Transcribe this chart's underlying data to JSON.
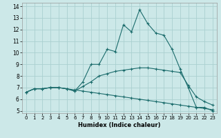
{
  "xlabel": "Humidex (Indice chaleur)",
  "background_color": "#cce8e8",
  "line_color": "#1a6b6b",
  "grid_color": "#aad0d0",
  "xlim": [
    -0.5,
    23.5
  ],
  "ylim": [
    4.8,
    14.3
  ],
  "xticks": [
    0,
    1,
    2,
    3,
    4,
    5,
    6,
    7,
    8,
    9,
    10,
    11,
    12,
    13,
    14,
    15,
    16,
    17,
    18,
    19,
    20,
    21,
    22,
    23
  ],
  "yticks": [
    5,
    6,
    7,
    8,
    9,
    10,
    11,
    12,
    13,
    14
  ],
  "lines": [
    {
      "x": [
        0,
        1,
        2,
        3,
        4,
        5,
        6,
        7,
        8,
        9,
        10,
        11,
        12,
        13,
        14,
        15,
        16,
        17,
        18,
        19,
        20,
        21,
        22,
        23
      ],
      "y": [
        6.6,
        6.9,
        6.9,
        7.0,
        7.0,
        6.9,
        6.7,
        7.5,
        9.0,
        9.0,
        10.3,
        10.1,
        12.4,
        11.8,
        13.7,
        12.5,
        11.7,
        11.5,
        10.3,
        8.6,
        7.0,
        5.3,
        5.3,
        5.0
      ]
    },
    {
      "x": [
        0,
        1,
        2,
        3,
        4,
        5,
        6,
        7,
        8,
        9,
        10,
        11,
        12,
        13,
        14,
        15,
        16,
        17,
        18,
        19,
        20,
        21,
        22,
        23
      ],
      "y": [
        6.6,
        6.9,
        6.9,
        7.0,
        7.0,
        6.9,
        6.7,
        7.1,
        7.5,
        8.0,
        8.2,
        8.4,
        8.5,
        8.6,
        8.7,
        8.7,
        8.6,
        8.5,
        8.4,
        8.3,
        7.2,
        6.2,
        5.8,
        5.5
      ]
    },
    {
      "x": [
        0,
        1,
        2,
        3,
        4,
        5,
        6,
        7,
        8,
        9,
        10,
        11,
        12,
        13,
        14,
        15,
        16,
        17,
        18,
        19,
        20,
        21,
        22,
        23
      ],
      "y": [
        6.6,
        6.9,
        6.9,
        7.0,
        7.0,
        6.9,
        6.8,
        6.7,
        6.6,
        6.5,
        6.4,
        6.3,
        6.2,
        6.1,
        6.0,
        5.9,
        5.8,
        5.7,
        5.6,
        5.5,
        5.4,
        5.3,
        5.2,
        5.1
      ]
    }
  ]
}
